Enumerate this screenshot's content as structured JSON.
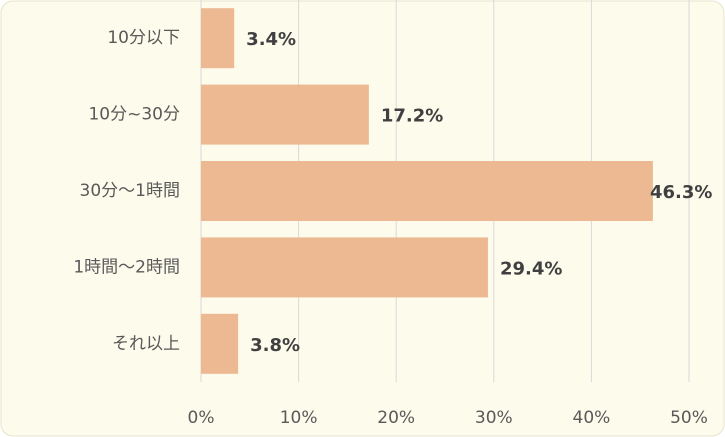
{
  "chart_data": {
    "type": "bar",
    "orientation": "horizontal",
    "categories": [
      "10分以下",
      "10分~30分",
      "30分～1時間",
      "1時間～2時間",
      "それ以上"
    ],
    "values": [
      3.4,
      17.2,
      46.3,
      29.4,
      3.8
    ],
    "value_labels": [
      "3.4%",
      "17.2%",
      "46.3%",
      "29.4%",
      "3.8%"
    ],
    "color": "#edb993",
    "xlim": [
      0,
      50
    ],
    "xticks": [
      {
        "value": 0,
        "label": "0%"
      },
      {
        "value": 10,
        "label": "10%"
      },
      {
        "value": 20,
        "label": "20%"
      },
      {
        "value": 30,
        "label": "30%"
      },
      {
        "value": 40,
        "label": "40%"
      },
      {
        "value": 50,
        "label": "50%"
      }
    ],
    "grid": true
  }
}
